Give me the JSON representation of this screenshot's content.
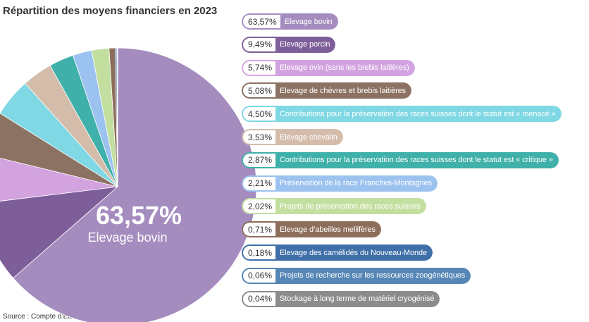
{
  "chart_data": {
    "type": "pie",
    "title": "Répartition des moyens financiers en 2023",
    "source": "Source : Compte d’Etat et OFAG",
    "categories": [
      "Elevage bovin",
      "Elevage porcin",
      "Elevage ovin (sans les brebis laitières)",
      "Elevage de chèvres et brebis laitières",
      "Contributions pour la préservation des races suisses dont le statut est « menacé »",
      "Elevage chevalin",
      "Contributions pour la préservation des races suisses dont le statut est « critique »",
      "Préservation de la race Franches-Montagnes",
      "Projets de préservation des races suisses",
      "Elevage d’abeilles mellifères",
      "Elevage des camélidés du Nouveau-Monde",
      "Projets de recherche sur les ressources zoogénétiques",
      "Stockage à long terme de matériel cryogénisé"
    ],
    "values": [
      63.57,
      9.49,
      5.74,
      5.08,
      4.5,
      3.53,
      2.87,
      2.21,
      2.02,
      0.71,
      0.18,
      0.06,
      0.04
    ],
    "value_labels": [
      "63,57%",
      "9,49%",
      "5,74%",
      "5,08%",
      "4,50%",
      "3,53%",
      "2,87%",
      "2,21%",
      "2,02%",
      "0,71%",
      "0,18%",
      "0,06%",
      "0,04%"
    ],
    "colors": [
      "#a58cbf",
      "#7e5e99",
      "#d3a3e0",
      "#8c7262",
      "#7fd8e3",
      "#d4bcaa",
      "#3fb0aa",
      "#9cc2ef",
      "#c3dfa0",
      "#8c6e5a",
      "#3f6fa8",
      "#5586b5",
      "#8c8c8c"
    ]
  }
}
